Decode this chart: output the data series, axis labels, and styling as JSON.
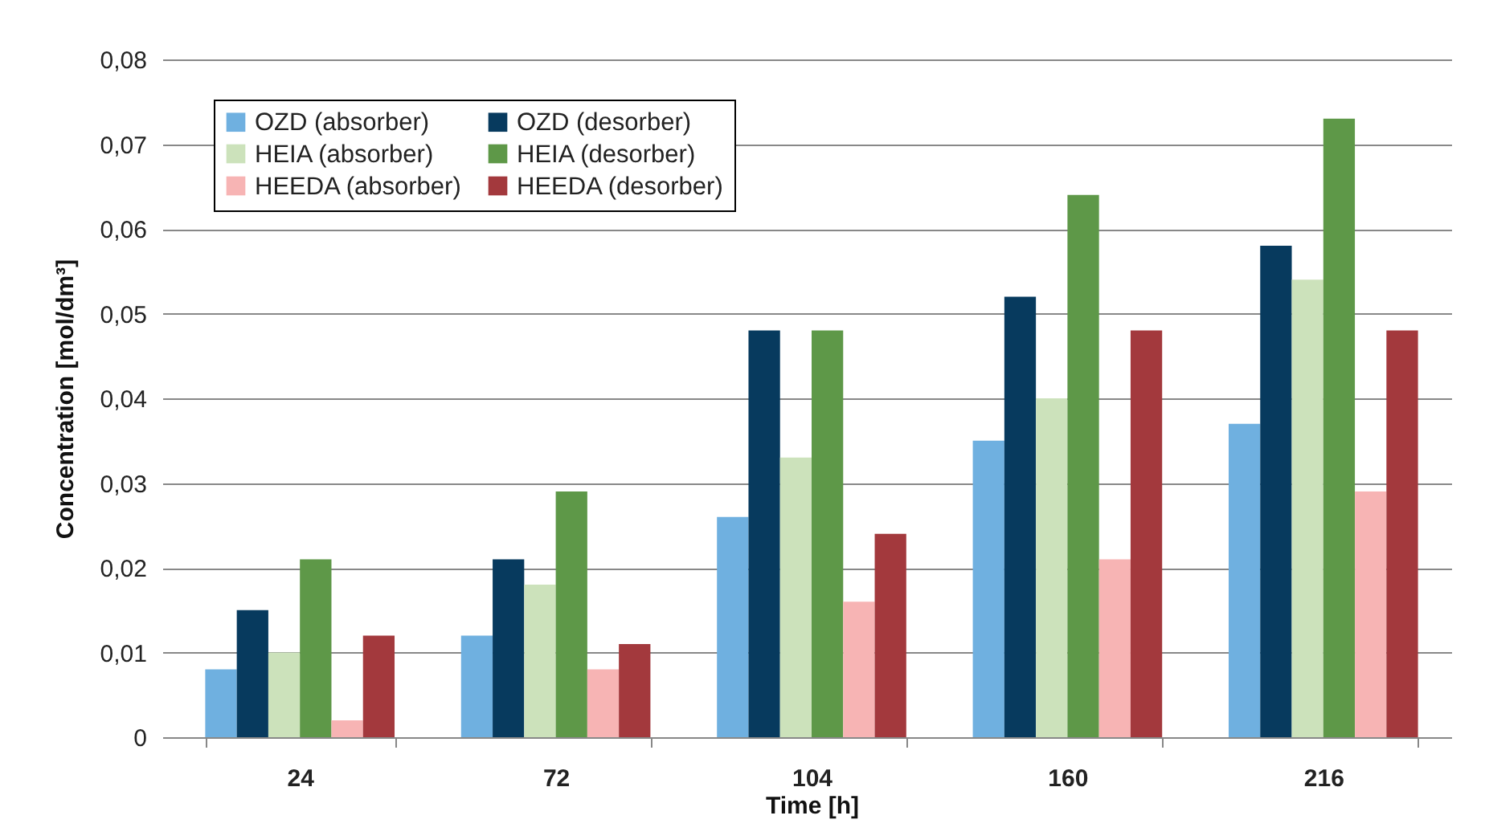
{
  "chart_data": {
    "type": "bar",
    "xlabel": "Time [h]",
    "ylabel": "Concentration [mol/dm³]",
    "categories": [
      "24",
      "72",
      "104",
      "160",
      "216"
    ],
    "series": [
      {
        "name": "OZD (absorber)",
        "color": "#6fb0e0",
        "values": [
          0.008,
          0.012,
          0.026,
          0.035,
          0.037
        ]
      },
      {
        "name": "OZD (desorber)",
        "color": "#073a5e",
        "values": [
          0.015,
          0.021,
          0.048,
          0.052,
          0.058
        ]
      },
      {
        "name": "HEIA (absorber)",
        "color": "#cce2bb",
        "values": [
          0.01,
          0.018,
          0.033,
          0.04,
          0.054
        ]
      },
      {
        "name": "HEIA (desorber)",
        "color": "#5e9848",
        "values": [
          0.021,
          0.029,
          0.048,
          0.064,
          0.073
        ]
      },
      {
        "name": "HEEDA (absorber)",
        "color": "#f7b4b4",
        "values": [
          0.002,
          0.008,
          0.016,
          0.021,
          0.029
        ]
      },
      {
        "name": "HEEDA (desorber)",
        "color": "#a3393d",
        "values": [
          0.012,
          0.011,
          0.024,
          0.048,
          0.048
        ]
      }
    ],
    "ylim": [
      0,
      0.08
    ],
    "yticks": [
      0,
      {
        "value": 0.01,
        "label": "0,01"
      },
      {
        "value": 0.02,
        "label": "0,02"
      },
      {
        "value": 0.03,
        "label": "0,03"
      },
      {
        "value": 0.04,
        "label": "0,04"
      },
      {
        "value": 0.05,
        "label": "0,05"
      },
      {
        "value": 0.06,
        "label": "0,06"
      },
      {
        "value": 0.07,
        "label": "0,07"
      },
      {
        "value": 0.08,
        "label": "0,08"
      }
    ],
    "grid": "y",
    "legend": "top left"
  }
}
